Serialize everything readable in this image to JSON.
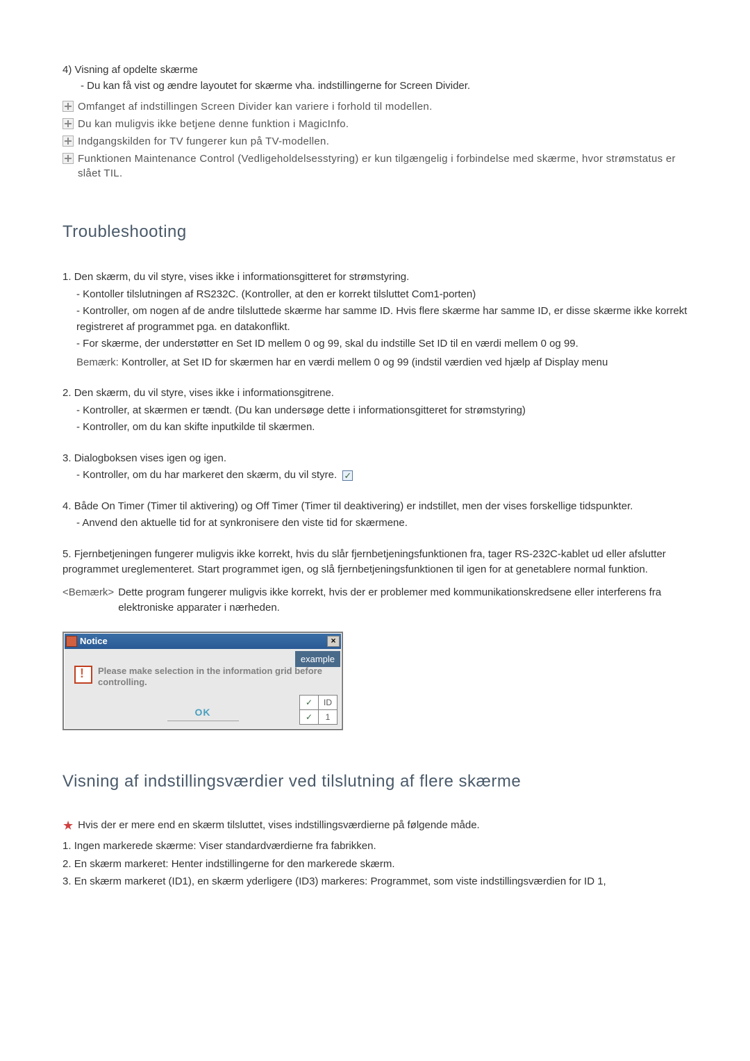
{
  "item4": {
    "num": "4)",
    "title": "Visning af opdelte skærme",
    "sub": "- Du kan få vist og ændre layoutet for skærme vha. indstillingerne for Screen Divider."
  },
  "notes": [
    "Omfanget af indstillingen Screen Divider kan variere i forhold til modellen.",
    "Du kan muligvis ikke betjene denne funktion i MagicInfo.",
    "Indgangskilden for TV fungerer kun på TV-modellen.",
    "Funktionen Maintenance Control (Vedligeholdelsesstyring) er kun tilgængelig i forbindelse med skærme, hvor strømstatus er slået TIL."
  ],
  "ts_heading": "Troubleshooting",
  "troubles": {
    "t1": {
      "num": "1.",
      "title": "Den skærm, du vil styre, vises ikke i informationsgitteret for strømstyring.",
      "subs": [
        "- Kontoller tilslutningen af RS232C. (Kontroller, at den er korrekt tilsluttet Com1-porten)",
        "- Kontroller, om nogen af de andre tilsluttede skærme har samme ID. Hvis flere skærme har samme ID, er disse skærme ikke korrekt registreret af programmet pga. en datakonflikt.",
        "- For skærme, der understøtter en Set ID mellem 0 og 99, skal du indstille Set ID til en værdi mellem 0 og 99."
      ],
      "bemark_label": "Bemærk:",
      "bemark": "Kontroller, at Set ID for skærmen har en værdi mellem 0 og 99 (indstil værdien ved hjælp af Display menu"
    },
    "t2": {
      "num": "2.",
      "title": "Den skærm, du vil styre, vises ikke i informationsgitrene.",
      "subs": [
        "- Kontroller, at skærmen er tændt. (Du kan undersøge dette i informationsgitteret for strømstyring)",
        "- Kontroller, om du kan skifte inputkilde til skærmen."
      ]
    },
    "t3": {
      "num": "3.",
      "title": "Dialogboksen vises igen og igen.",
      "sub": "- Kontroller, om du har markeret den skærm, du vil styre."
    },
    "t4": {
      "num": "4.",
      "title": "Både On Timer (Timer til aktivering) og Off Timer (Timer til deaktivering) er indstillet, men der vises forskellige tidspunkter.",
      "sub": "- Anvend den aktuelle tid for at synkronisere den viste tid for skærmene."
    },
    "t5": {
      "num": "5.",
      "title": "Fjernbetjeningen fungerer muligvis ikke korrekt, hvis du slår fjernbetjeningsfunktionen fra, tager RS-232C-kablet ud eller afslutter programmet ureglementeret. Start programmet igen, og slå fjernbetjeningsfunktionen til igen for at genetablere normal funktion.",
      "bemark_label": "<Bemærk>",
      "bemark": "Dette program fungerer muligvis ikke korrekt, hvis der er problemer med kommunikationskredsene eller interferens fra elektroniske apparater i nærheden."
    }
  },
  "dialog": {
    "title": "Notice",
    "message": "Please make selection in the information grid before controlling.",
    "ok": "OK",
    "example": "example",
    "id_header": "ID",
    "id_value": "1"
  },
  "multi_heading": "Visning af indstillingsværdier ved tilslutning af flere skærme",
  "star_text": "Hvis der er mere end en skærm tilsluttet, vises indstillingsværdierne på følgende måde.",
  "multi_items": {
    "m1": {
      "num": "1.",
      "text": "Ingen markerede skærme: Viser standardværdierne fra fabrikken."
    },
    "m2": {
      "num": "2.",
      "text": "En skærm markeret: Henter indstillingerne for den markerede skærm."
    },
    "m3": {
      "num": "3.",
      "text": "En skærm markeret (ID1), en skærm yderligere (ID3) markeres: Programmet, som viste indstillingsværdien for ID 1,"
    }
  }
}
